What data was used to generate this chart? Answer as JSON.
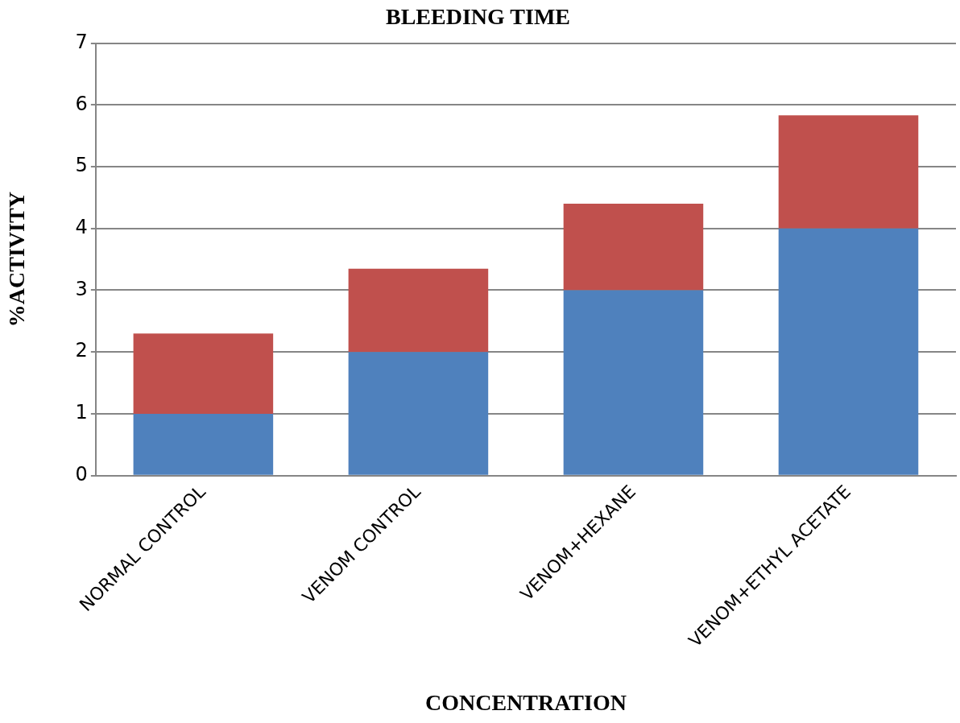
{
  "chart_data": {
    "type": "bar",
    "title": "BLEEDING TIME",
    "xlabel": "CONCENTRATION",
    "ylabel": "%ACTIVITY",
    "categories": [
      "NORMAL CONTROL",
      "VENOM CONTROL",
      "VENOM+HEXANE",
      "VENOM+ETHYL ACETATE"
    ],
    "stacked": true,
    "series": [
      {
        "color": "#4f81bd",
        "values": [
          1,
          2,
          3,
          4
        ]
      },
      {
        "color": "#c0504d",
        "values": [
          1.3,
          1.35,
          1.4,
          1.83
        ]
      }
    ],
    "ylim": [
      0,
      7
    ],
    "yticks": [
      0,
      1,
      2,
      3,
      4,
      5,
      6,
      7
    ],
    "grid": "y",
    "legend": false
  }
}
